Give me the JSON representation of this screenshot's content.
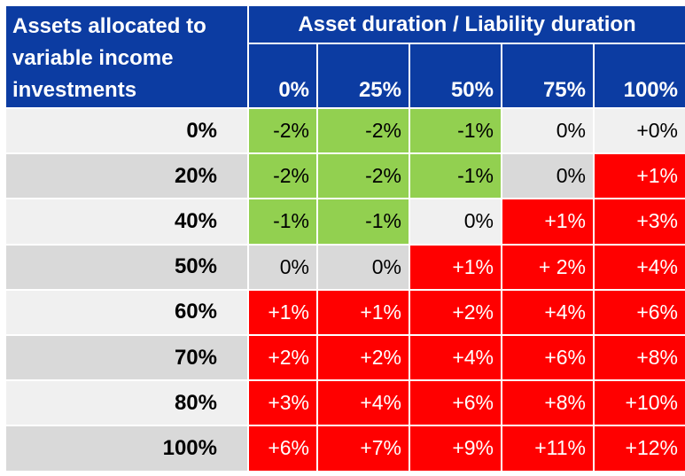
{
  "colors": {
    "blue": "#0C3CA2",
    "green": "#92D050",
    "red": "#FF0000",
    "row-light": "#F0F0F0",
    "row-dark": "#D9D9D9",
    "header-text": "#FFFFFF",
    "body-text": "#000000"
  },
  "table": {
    "corner_header": "Assets allocated to variable income investments",
    "top_header": "Asset duration / Liability duration",
    "col_headers": [
      "0%",
      "25%",
      "50%",
      "75%",
      "100%"
    ],
    "rows": [
      {
        "label": "0%",
        "cells": [
          {
            "text": "-2%",
            "variant": "green"
          },
          {
            "text": "-2%",
            "variant": "green"
          },
          {
            "text": "-1%",
            "variant": "green"
          },
          {
            "text": "0%",
            "variant": "plain"
          },
          {
            "text": "+0%",
            "variant": "plain"
          }
        ]
      },
      {
        "label": "20%",
        "cells": [
          {
            "text": "-2%",
            "variant": "green"
          },
          {
            "text": "-2%",
            "variant": "green"
          },
          {
            "text": "-1%",
            "variant": "green"
          },
          {
            "text": "0%",
            "variant": "plain"
          },
          {
            "text": "+1%",
            "variant": "red"
          }
        ]
      },
      {
        "label": "40%",
        "cells": [
          {
            "text": "-1%",
            "variant": "green"
          },
          {
            "text": "-1%",
            "variant": "green"
          },
          {
            "text": "0%",
            "variant": "plain"
          },
          {
            "text": "+1%",
            "variant": "red"
          },
          {
            "text": "+3%",
            "variant": "red"
          }
        ]
      },
      {
        "label": "50%",
        "cells": [
          {
            "text": "0%",
            "variant": "plain"
          },
          {
            "text": "0%",
            "variant": "plain"
          },
          {
            "text": "+1%",
            "variant": "red"
          },
          {
            "text": "+ 2%",
            "variant": "red"
          },
          {
            "text": "+4%",
            "variant": "red"
          }
        ]
      },
      {
        "label": "60%",
        "cells": [
          {
            "text": "+1%",
            "variant": "red"
          },
          {
            "text": "+1%",
            "variant": "red"
          },
          {
            "text": "+2%",
            "variant": "red"
          },
          {
            "text": "+4%",
            "variant": "red"
          },
          {
            "text": "+6%",
            "variant": "red"
          }
        ]
      },
      {
        "label": "70%",
        "cells": [
          {
            "text": "+2%",
            "variant": "red"
          },
          {
            "text": "+2%",
            "variant": "red"
          },
          {
            "text": "+4%",
            "variant": "red"
          },
          {
            "text": "+6%",
            "variant": "red"
          },
          {
            "text": "+8%",
            "variant": "red"
          }
        ]
      },
      {
        "label": "80%",
        "cells": [
          {
            "text": "+3%",
            "variant": "red"
          },
          {
            "text": "+4%",
            "variant": "red"
          },
          {
            "text": "+6%",
            "variant": "red"
          },
          {
            "text": "+8%",
            "variant": "red"
          },
          {
            "text": "+10%",
            "variant": "red"
          }
        ]
      },
      {
        "label": "100%",
        "cells": [
          {
            "text": "+6%",
            "variant": "red"
          },
          {
            "text": "+7%",
            "variant": "red"
          },
          {
            "text": "+9%",
            "variant": "red"
          },
          {
            "text": "+11%",
            "variant": "red"
          },
          {
            "text": "+12%",
            "variant": "red"
          }
        ]
      }
    ]
  },
  "chart_data": {
    "type": "heatmap",
    "title": "Asset duration / Liability duration",
    "row_axis_label": "Assets allocated to variable income investments",
    "columns": [
      "0%",
      "25%",
      "50%",
      "75%",
      "100%"
    ],
    "rows": [
      "0%",
      "20%",
      "40%",
      "50%",
      "60%",
      "70%",
      "80%",
      "100%"
    ],
    "values_pct": [
      [
        -2,
        -2,
        -1,
        0,
        0
      ],
      [
        -2,
        -2,
        -1,
        0,
        1
      ],
      [
        -1,
        -1,
        0,
        1,
        3
      ],
      [
        0,
        0,
        1,
        2,
        4
      ],
      [
        1,
        1,
        2,
        4,
        6
      ],
      [
        2,
        2,
        4,
        6,
        8
      ],
      [
        3,
        4,
        6,
        8,
        10
      ],
      [
        6,
        7,
        9,
        11,
        12
      ]
    ],
    "cell_colors": [
      [
        "green",
        "green",
        "green",
        "neutral",
        "neutral"
      ],
      [
        "green",
        "green",
        "green",
        "neutral",
        "red"
      ],
      [
        "green",
        "green",
        "neutral",
        "red",
        "red"
      ],
      [
        "neutral",
        "neutral",
        "red",
        "red",
        "red"
      ],
      [
        "red",
        "red",
        "red",
        "red",
        "red"
      ],
      [
        "red",
        "red",
        "red",
        "red",
        "red"
      ],
      [
        "red",
        "red",
        "red",
        "red",
        "red"
      ],
      [
        "red",
        "red",
        "red",
        "red",
        "red"
      ]
    ]
  }
}
